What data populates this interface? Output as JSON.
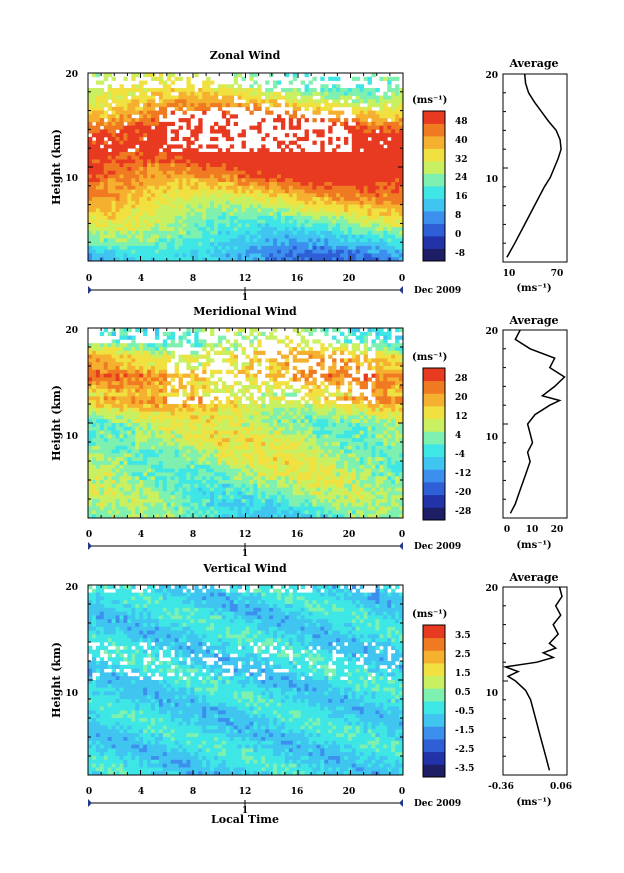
{
  "chart_data": [
    {
      "id": "zonal",
      "type": "heatmap",
      "title": "Zonal Wind",
      "ylabel": "Height (km)",
      "x_ticks": [
        "0",
        "4",
        "8",
        "12",
        "16",
        "20",
        "0"
      ],
      "x_range": [
        0,
        24
      ],
      "y_ticks": [
        "20",
        "10"
      ],
      "y_range": [
        0,
        20
      ],
      "date_tick": "1",
      "date_label": "Dec 2009",
      "colorbar": {
        "unit_label": "(ms⁻¹)",
        "labels": [
          "48",
          "40",
          "32",
          "24",
          "16",
          "8",
          "0",
          "-8"
        ],
        "range": [
          -8,
          48
        ]
      },
      "profile": {
        "title": "Average",
        "unit_label": "(ms⁻¹)",
        "x_ticks": [
          "10",
          "70"
        ],
        "x_range": [
          10,
          75
        ],
        "y_ticks": [
          "20",
          "10"
        ],
        "y_range": [
          0,
          20
        ],
        "heights": [
          0.5,
          2,
          4,
          6,
          8,
          9,
          10,
          11,
          12,
          13,
          14,
          15,
          16,
          17,
          18,
          19,
          20
        ],
        "values": [
          14,
          22,
          32,
          42,
          52,
          58,
          62,
          66,
          69,
          68,
          64,
          56,
          49,
          42,
          36,
          33,
          32
        ]
      }
    },
    {
      "id": "meridional",
      "type": "heatmap",
      "title": "Meridional Wind",
      "ylabel": "Height (km)",
      "x_ticks": [
        "0",
        "4",
        "8",
        "12",
        "16",
        "20",
        "0"
      ],
      "x_range": [
        0,
        24
      ],
      "y_ticks": [
        "20",
        "10"
      ],
      "y_range": [
        0,
        20
      ],
      "date_tick": "1",
      "date_label": "Dec 2009",
      "colorbar": {
        "unit_label": "(ms⁻¹)",
        "labels": [
          "28",
          "20",
          "12",
          "4",
          "-4",
          "-12",
          "-20",
          "-28"
        ],
        "range": [
          -28,
          28
        ]
      },
      "profile": {
        "title": "Average",
        "unit_label": "(ms⁻¹)",
        "x_ticks": [
          "0",
          "10",
          "20"
        ],
        "x_range": [
          -1,
          25
        ],
        "y_ticks": [
          "20",
          "10"
        ],
        "y_range": [
          0,
          20
        ],
        "heights": [
          0.5,
          1.5,
          3,
          4.5,
          6,
          7,
          8,
          9,
          10,
          11,
          12,
          12.5,
          13,
          14,
          15,
          16,
          17,
          18,
          19,
          20
        ],
        "values": [
          2,
          4,
          6,
          8,
          10,
          9,
          11,
          10,
          9,
          12,
          18,
          22,
          15,
          20,
          24,
          18,
          20,
          10,
          4,
          6
        ]
      }
    },
    {
      "id": "vertical",
      "type": "heatmap",
      "title": "Vertical Wind",
      "ylabel": "Height (km)",
      "xlabel": "Local Time",
      "x_ticks": [
        "0",
        "4",
        "8",
        "12",
        "16",
        "20",
        "0"
      ],
      "x_range": [
        0,
        24
      ],
      "y_ticks": [
        "20",
        "10"
      ],
      "y_range": [
        0,
        20
      ],
      "date_tick": "1",
      "date_label": "Dec 2009",
      "colorbar": {
        "unit_label": "(ms⁻¹)",
        "labels": [
          "3.5",
          "2.5",
          "1.5",
          "0.5",
          "-0.5",
          "-1.5",
          "-2.5",
          "-3.5"
        ],
        "range": [
          -4,
          4
        ]
      },
      "profile": {
        "title": "Average",
        "unit_label": "(ms⁻¹)",
        "x_ticks": [
          "-0.36",
          "0.06"
        ],
        "x_range": [
          -0.42,
          0.09
        ],
        "y_ticks": [
          "20",
          "10"
        ],
        "y_range": [
          0,
          20
        ],
        "heights": [
          0.5,
          2,
          4,
          6,
          8,
          9,
          10,
          10.5,
          11,
          11.5,
          12,
          12.5,
          13,
          13.5,
          14,
          15,
          16,
          17,
          18,
          19,
          20
        ],
        "values": [
          -0.05,
          -0.08,
          -0.12,
          -0.16,
          -0.2,
          -0.24,
          -0.32,
          -0.38,
          -0.3,
          -0.4,
          -0.15,
          -0.02,
          -0.1,
          0.0,
          -0.05,
          0.02,
          -0.02,
          0.04,
          0.0,
          0.05,
          0.03
        ]
      }
    }
  ]
}
